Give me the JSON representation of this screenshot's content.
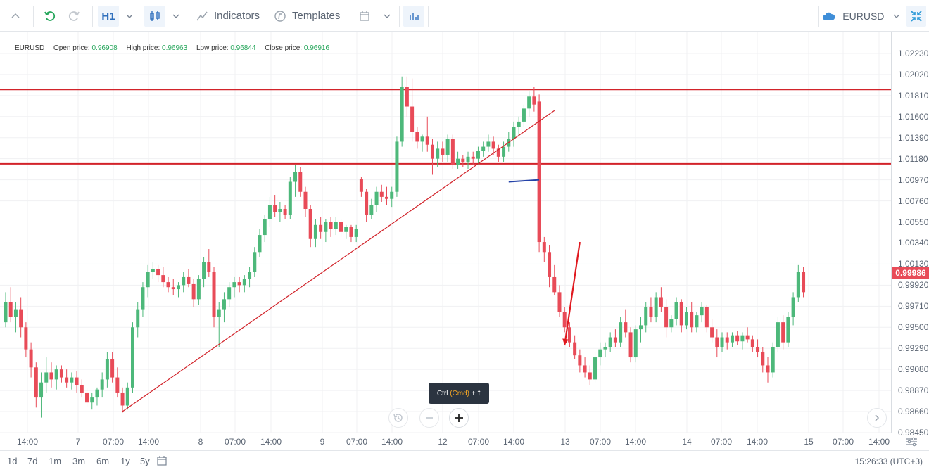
{
  "toolbar": {
    "timeframe": "H1",
    "indicators_label": "Indicators",
    "templates_label": "Templates",
    "symbol": "EURUSD"
  },
  "ohlc": {
    "symbol": "EURUSD",
    "open_label": "Open price:",
    "open_value": "0.96908",
    "high_label": "High price:",
    "high_value": "0.96963",
    "low_label": "Low price:",
    "low_value": "0.96844",
    "close_label": "Close price:",
    "close_value": "0.96916"
  },
  "tooltip": {
    "ctrl": "Ctrl",
    "cmd": "(Cmd)",
    "plus": "+ ⭡"
  },
  "current_price": "0.99986",
  "ranges": [
    "1d",
    "7d",
    "1m",
    "3m",
    "6m",
    "1y",
    "5y"
  ],
  "clock": "15:26:33 (UTC+3)",
  "colors": {
    "up": "#4db87a",
    "down": "#e84b58",
    "level_line": "#d2232a",
    "trend_line": "#d2232a",
    "marker_line": "#2442a8",
    "accent": "#2f6fbd"
  },
  "chart_data": {
    "type": "candlestick",
    "symbol": "EURUSD",
    "timeframe": "H1",
    "y_ticks": [
      "1.02230",
      "1.02020",
      "1.01810",
      "1.01600",
      "1.01390",
      "1.01180",
      "1.00970",
      "1.00760",
      "1.00550",
      "1.00340",
      "1.00130",
      "0.99920",
      "0.99710",
      "0.99500",
      "0.99290",
      "0.99080",
      "0.98870",
      "0.98660",
      "0.98450"
    ],
    "ylim": [
      0.9845,
      1.0244
    ],
    "x_ticks": [
      "14:00",
      "7",
      "07:00",
      "14:00",
      "8",
      "07:00",
      "14:00",
      "9",
      "07:00",
      "14:00",
      "12",
      "07:00",
      "14:00",
      "13",
      "07:00",
      "14:00",
      "14",
      "07:00",
      "14:00",
      "15",
      "07:00",
      "14:00"
    ],
    "candles": [
      [
        0.9955,
        0.9985,
        0.995,
        0.9975
      ],
      [
        0.9975,
        0.999,
        0.9955,
        0.996
      ],
      [
        0.996,
        0.9975,
        0.9945,
        0.9968
      ],
      [
        0.9968,
        0.998,
        0.994,
        0.995
      ],
      [
        0.995,
        0.9955,
        0.992,
        0.9928
      ],
      [
        0.9928,
        0.9935,
        0.99,
        0.991
      ],
      [
        0.991,
        0.9915,
        0.987,
        0.988
      ],
      [
        0.988,
        0.9905,
        0.986,
        0.9895
      ],
      [
        0.9895,
        0.992,
        0.9885,
        0.9905
      ],
      [
        0.9905,
        0.9915,
        0.989,
        0.9898
      ],
      [
        0.9898,
        0.9912,
        0.9888,
        0.9908
      ],
      [
        0.9908,
        0.9912,
        0.9895,
        0.99
      ],
      [
        0.99,
        0.9908,
        0.989,
        0.9895
      ],
      [
        0.9895,
        0.9905,
        0.9888,
        0.99
      ],
      [
        0.99,
        0.9906,
        0.9885,
        0.9892
      ],
      [
        0.9892,
        0.9898,
        0.988,
        0.9885
      ],
      [
        0.9885,
        0.989,
        0.987,
        0.9875
      ],
      [
        0.9875,
        0.9885,
        0.9868,
        0.988
      ],
      [
        0.988,
        0.989,
        0.9872,
        0.9888
      ],
      [
        0.9888,
        0.9905,
        0.988,
        0.9898
      ],
      [
        0.9898,
        0.9925,
        0.989,
        0.9918
      ],
      [
        0.9918,
        0.9925,
        0.9895,
        0.99
      ],
      [
        0.99,
        0.991,
        0.988,
        0.9885
      ],
      [
        0.9885,
        0.989,
        0.9865,
        0.9872
      ],
      [
        0.9872,
        0.9895,
        0.9868,
        0.989
      ],
      [
        0.989,
        0.9955,
        0.9885,
        0.995
      ],
      [
        0.995,
        0.9975,
        0.994,
        0.9968
      ],
      [
        0.9968,
        0.9995,
        0.996,
        0.999
      ],
      [
        0.999,
        1.0012,
        0.998,
        1.0005
      ],
      [
        1.0005,
        1.0015,
        0.9998,
        1.0008
      ],
      [
        1.0008,
        1.0012,
        0.9995,
        1.0002
      ],
      [
        1.0002,
        1.001,
        0.999,
        0.9995
      ],
      [
        0.9995,
        1.0,
        0.9985,
        0.999
      ],
      [
        0.999,
        0.9998,
        0.9982,
        0.9988
      ],
      [
        0.9988,
        0.9995,
        0.998,
        0.9992
      ],
      [
        0.9992,
        1.0005,
        0.9985,
        1.0
      ],
      [
        1.0,
        1.0008,
        0.999,
        0.9993
      ],
      [
        0.9993,
        0.9998,
        0.997,
        0.9978
      ],
      [
        0.9978,
        1.0002,
        0.9972,
        0.9998
      ],
      [
        0.9998,
        1.002,
        0.999,
        1.0015
      ],
      [
        1.0015,
        1.0028,
        1.0,
        1.0005
      ],
      [
        1.0005,
        1.001,
        0.995,
        0.996
      ],
      [
        0.996,
        0.9975,
        0.993,
        0.9968
      ],
      [
        0.9968,
        0.9985,
        0.9955,
        0.9978
      ],
      [
        0.9978,
        0.9995,
        0.997,
        0.999
      ],
      [
        0.999,
        1.0,
        0.998,
        0.9995
      ],
      [
        0.9995,
        1.0,
        0.9985,
        0.9992
      ],
      [
        0.9992,
        1.0002,
        0.9985,
        0.9998
      ],
      [
        0.9998,
        1.001,
        0.999,
        1.0005
      ],
      [
        1.0005,
        1.003,
        1.0,
        1.0025
      ],
      [
        1.0025,
        1.0048,
        1.002,
        1.0042
      ],
      [
        1.0042,
        1.0062,
        1.0035,
        1.0058
      ],
      [
        1.0058,
        1.008,
        1.005,
        1.0072
      ],
      [
        1.0072,
        1.0082,
        1.006,
        1.0065
      ],
      [
        1.0065,
        1.0075,
        1.0055,
        1.0068
      ],
      [
        1.0068,
        1.0072,
        1.0058,
        1.0062
      ],
      [
        1.0062,
        1.01,
        1.0058,
        1.0095
      ],
      [
        1.0095,
        1.0112,
        1.008,
        1.0105
      ],
      [
        1.0105,
        1.011,
        1.008,
        1.0085
      ],
      [
        1.0085,
        1.009,
        1.006,
        1.0068
      ],
      [
        1.0068,
        1.0072,
        1.003,
        1.0038
      ],
      [
        1.0038,
        1.0058,
        1.003,
        1.0052
      ],
      [
        1.0052,
        1.006,
        1.0038,
        1.0045
      ],
      [
        1.0045,
        1.0058,
        1.0035,
        1.0055
      ],
      [
        1.0055,
        1.006,
        1.004,
        1.0048
      ],
      [
        1.0048,
        1.006,
        1.0042,
        1.0055
      ],
      [
        1.0055,
        1.0058,
        1.004,
        1.0045
      ],
      [
        1.0045,
        1.0052,
        1.0038,
        1.005
      ],
      [
        1.005,
        1.0052,
        1.0035,
        1.004
      ],
      [
        1.004,
        1.0052,
        1.0035,
        1.0048
      ],
      [
        1.0098,
        1.01,
        1.008,
        1.0085
      ],
      [
        1.0085,
        1.0088,
        1.0055,
        1.0062
      ],
      [
        1.0062,
        1.0078,
        1.0058,
        1.0072
      ],
      [
        1.0072,
        1.009,
        1.0065,
        1.0085
      ],
      [
        1.0085,
        1.0092,
        1.0075,
        1.008
      ],
      [
        1.008,
        1.009,
        1.0072,
        1.0078
      ],
      [
        1.0078,
        1.009,
        1.007,
        1.0085
      ],
      [
        1.0085,
        1.014,
        1.008,
        1.0135
      ],
      [
        1.0135,
        1.02,
        1.013,
        1.019
      ],
      [
        1.019,
        1.02,
        1.016,
        1.017
      ],
      [
        1.017,
        1.0198,
        1.0135,
        1.0145
      ],
      [
        1.0145,
        1.015,
        1.0128,
        1.0135
      ],
      [
        1.0135,
        1.0142,
        1.0125,
        1.014
      ],
      [
        1.014,
        1.016,
        1.0125,
        1.0132
      ],
      [
        1.0132,
        1.0138,
        1.0102,
        1.0118
      ],
      [
        1.0118,
        1.0135,
        1.011,
        1.0128
      ],
      [
        1.0128,
        1.0135,
        1.0115,
        1.0122
      ],
      [
        1.0122,
        1.0142,
        1.0115,
        1.0138
      ],
      [
        1.0138,
        1.0142,
        1.0108,
        1.0112
      ],
      [
        1.0112,
        1.0125,
        1.0108,
        1.0118
      ],
      [
        1.0118,
        1.0122,
        1.011,
        1.0115
      ],
      [
        1.0115,
        1.0125,
        1.0108,
        1.012
      ],
      [
        1.012,
        1.0125,
        1.0112,
        1.0118
      ],
      [
        1.0118,
        1.013,
        1.0112,
        1.0126
      ],
      [
        1.0126,
        1.0135,
        1.012,
        1.013
      ],
      [
        1.013,
        1.0142,
        1.0125,
        1.0135
      ],
      [
        1.0135,
        1.014,
        1.0122,
        1.0128
      ],
      [
        1.0128,
        1.0132,
        1.0115,
        1.012
      ],
      [
        1.012,
        1.0135,
        1.0115,
        1.013
      ],
      [
        1.013,
        1.0145,
        1.0125,
        1.0138
      ],
      [
        1.0138,
        1.0155,
        1.013,
        1.015
      ],
      [
        1.015,
        1.016,
        1.014,
        1.0155
      ],
      [
        1.0155,
        1.0172,
        1.015,
        1.0168
      ],
      [
        1.0168,
        1.0185,
        1.016,
        1.018
      ],
      [
        1.018,
        1.019,
        1.0165,
        1.0172
      ],
      [
        1.0175,
        1.0182,
        1.0025,
        1.0035
      ],
      [
        1.0035,
        1.004,
        1.0015,
        1.0025
      ],
      [
        1.0025,
        1.0032,
        0.999,
        1.0
      ],
      [
        1.0,
        1.0012,
        0.9982,
        0.9985
      ],
      [
        0.9985,
        0.9992,
        0.996,
        0.9965
      ],
      [
        0.9965,
        0.997,
        0.9945,
        0.995
      ],
      [
        0.995,
        0.9955,
        0.993,
        0.9935
      ],
      [
        0.9935,
        0.9942,
        0.9918,
        0.9922
      ],
      [
        0.9922,
        0.9928,
        0.9905,
        0.9912
      ],
      [
        0.9912,
        0.992,
        0.99,
        0.9905
      ],
      [
        0.9905,
        0.9912,
        0.9892,
        0.9898
      ],
      [
        0.9898,
        0.9925,
        0.9895,
        0.992
      ],
      [
        0.992,
        0.9935,
        0.9912,
        0.9928
      ],
      [
        0.9928,
        0.9935,
        0.992,
        0.993
      ],
      [
        0.993,
        0.9945,
        0.9925,
        0.994
      ],
      [
        0.994,
        0.9948,
        0.993,
        0.9935
      ],
      [
        0.9935,
        0.996,
        0.993,
        0.9955
      ],
      [
        0.9955,
        0.9968,
        0.994,
        0.9945
      ],
      [
        0.9945,
        0.995,
        0.9915,
        0.992
      ],
      [
        0.992,
        0.9952,
        0.9915,
        0.9948
      ],
      [
        0.9948,
        0.996,
        0.9935,
        0.9952
      ],
      [
        0.9952,
        0.9975,
        0.9945,
        0.997
      ],
      [
        0.997,
        0.998,
        0.9955,
        0.996
      ],
      [
        0.996,
        0.9985,
        0.9955,
        0.998
      ],
      [
        0.998,
        0.999,
        0.9965,
        0.997
      ],
      [
        0.997,
        0.9978,
        0.994,
        0.995
      ],
      [
        0.995,
        0.9962,
        0.9945,
        0.9958
      ],
      [
        0.9958,
        0.998,
        0.9952,
        0.9975
      ],
      [
        0.9975,
        0.9978,
        0.9945,
        0.9952
      ],
      [
        0.9952,
        0.997,
        0.9948,
        0.9965
      ],
      [
        0.9965,
        0.9975,
        0.9945,
        0.995
      ],
      [
        0.995,
        0.9965,
        0.9945,
        0.9962
      ],
      [
        0.9962,
        0.9975,
        0.9955,
        0.997
      ],
      [
        0.997,
        0.9972,
        0.9945,
        0.995
      ],
      [
        0.995,
        0.9958,
        0.9935,
        0.994
      ],
      [
        0.994,
        0.9948,
        0.992,
        0.993
      ],
      [
        0.993,
        0.9945,
        0.9925,
        0.994
      ],
      [
        0.994,
        0.9945,
        0.9928,
        0.9935
      ],
      [
        0.9935,
        0.9945,
        0.993,
        0.9942
      ],
      [
        0.9942,
        0.9946,
        0.9932,
        0.9936
      ],
      [
        0.9936,
        0.9945,
        0.9928,
        0.9942
      ],
      [
        0.9942,
        0.995,
        0.9935,
        0.9938
      ],
      [
        0.9938,
        0.9942,
        0.9925,
        0.993
      ],
      [
        0.993,
        0.9938,
        0.992,
        0.9925
      ],
      [
        0.9925,
        0.993,
        0.9905,
        0.9912
      ],
      [
        0.9912,
        0.992,
        0.9895,
        0.9905
      ],
      [
        0.9905,
        0.9935,
        0.99,
        0.993
      ],
      [
        0.993,
        0.996,
        0.9925,
        0.9955
      ],
      [
        0.9955,
        0.9962,
        0.9928,
        0.9935
      ],
      [
        0.9935,
        0.9965,
        0.993,
        0.996
      ],
      [
        0.996,
        0.9985,
        0.9952,
        0.998
      ],
      [
        0.998,
        1.0012,
        0.9975,
        1.0005
      ],
      [
        1.0005,
        1.001,
        0.998,
        0.9985
      ]
    ],
    "horizontal_levels": [
      1.0187,
      1.0113
    ],
    "trend_line": {
      "from_index": 23,
      "from_price": 0.9866,
      "to_index": 108,
      "to_price": 1.0166
    },
    "marker_segment": {
      "from_index": 99,
      "to_index": 105,
      "price_from": 1.0095,
      "price_to": 1.0097
    },
    "arrow": {
      "from_index": 113,
      "from_price": 1.0035,
      "to_index": 110,
      "to_price": 0.9932
    }
  }
}
